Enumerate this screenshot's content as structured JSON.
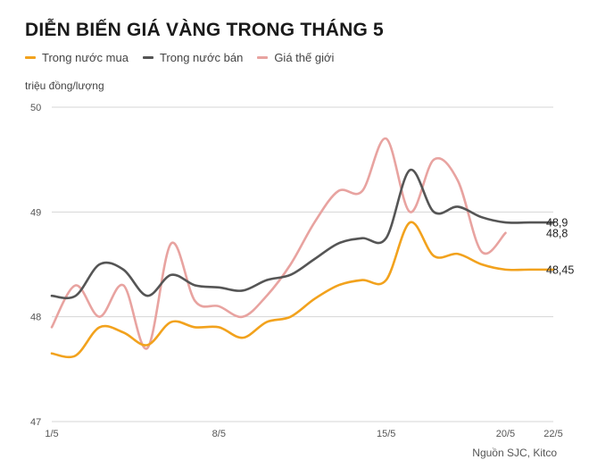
{
  "title": "DIỄN BIẾN GIÁ VÀNG TRONG THÁNG 5",
  "unit_label": "triệu đồng/lượng",
  "source": "Nguồn SJC, Kitco",
  "chart_data": {
    "type": "line",
    "title": "DIỄN BIẾN GIÁ VÀNG TRONG THÁNG 5",
    "ylabel": "triệu đồng/lượng",
    "xlabel": "",
    "ylim": [
      47,
      50
    ],
    "yticks": [
      47,
      48,
      49,
      50
    ],
    "grid": true,
    "legend_position": "top-left",
    "x": [
      "1/5",
      "2/5",
      "3/5",
      "4/5",
      "5/5",
      "6/5",
      "7/5",
      "8/5",
      "9/5",
      "10/5",
      "11/5",
      "12/5",
      "13/5",
      "14/5",
      "15/5",
      "16/5",
      "17/5",
      "18/5",
      "19/5",
      "20/5",
      "21/5",
      "22/5"
    ],
    "x_tick_labels": [
      "1/5",
      "8/5",
      "15/5",
      "20/5",
      "22/5"
    ],
    "series": [
      {
        "name": "Trong nước mua",
        "color": "#f2a21d",
        "values": [
          47.65,
          47.63,
          47.9,
          47.85,
          47.73,
          47.95,
          47.9,
          47.9,
          47.8,
          47.95,
          48.0,
          48.17,
          48.3,
          48.35,
          48.35,
          48.9,
          48.58,
          48.6,
          48.5,
          48.45,
          48.45,
          48.45
        ],
        "end_label": "48,45"
      },
      {
        "name": "Trong nước bán",
        "color": "#555555",
        "values": [
          48.2,
          48.2,
          48.5,
          48.45,
          48.2,
          48.4,
          48.3,
          48.28,
          48.25,
          48.35,
          48.4,
          48.55,
          48.7,
          48.75,
          48.75,
          49.4,
          49.0,
          49.05,
          48.95,
          48.9,
          48.9,
          48.9
        ],
        "end_label": "48,9"
      },
      {
        "name": "Giá thế giới",
        "color": "#e8a3a0",
        "values": [
          47.9,
          48.3,
          48.0,
          48.3,
          47.7,
          48.7,
          48.15,
          48.1,
          48.0,
          48.2,
          48.5,
          48.9,
          49.2,
          49.2,
          49.7,
          49.0,
          49.5,
          49.3,
          48.62,
          48.8,
          null,
          null
        ],
        "end_label": "48,8"
      }
    ]
  }
}
